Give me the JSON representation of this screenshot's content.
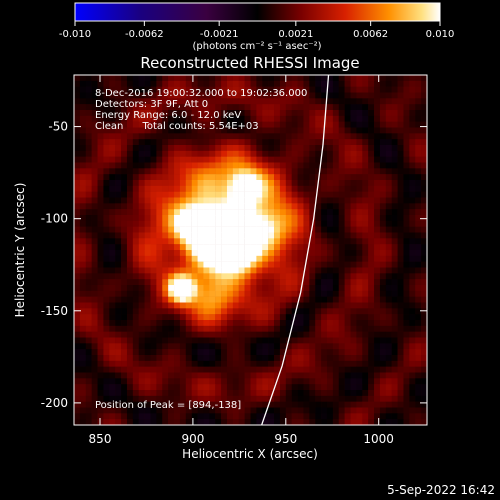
{
  "chart_data": {
    "type": "heatmap",
    "title": "Reconstructed RHESSI Image",
    "xlabel": "Heliocentric X (arcsec)",
    "ylabel": "Heliocentric Y (arcsec)",
    "xlim": [
      836,
      1026
    ],
    "ylim": [
      -212,
      -22
    ],
    "xticks": [
      850,
      900,
      950,
      1000
    ],
    "yticks": [
      -50,
      -100,
      -150,
      -200
    ],
    "colorbar": {
      "colormap": "hot-blue",
      "range": [
        -0.01,
        0.01
      ],
      "tick_values": [
        -0.01,
        -0.0062,
        -0.0021,
        0.0021,
        0.0062,
        0.01
      ],
      "tick_labels": [
        "-0.010",
        "-0.0062",
        "-0.0021",
        "0.0021",
        "0.0062",
        "0.010"
      ],
      "units_label": "(photons cm⁻² s⁻¹ asec⁻²)"
    },
    "annotations": [
      "8-Dec-2016 19:00:32.000 to 19:02:36.000",
      "Detectors: 3F 9F, Att 0",
      "Energy Range: 6.0 - 12.0 keV",
      "Clean      Total counts: 5.54E+03"
    ],
    "peak_label": "Position of Peak = [894,-138]",
    "peak": [
      894,
      -138
    ],
    "limb_points": [
      [
        973,
        -22
      ],
      [
        970,
        -60
      ],
      [
        965,
        -100
      ],
      [
        958,
        -140
      ],
      [
        948,
        -180
      ],
      [
        937,
        -212
      ]
    ],
    "sources": [
      {
        "x": 894,
        "y": -138,
        "value": 0.01,
        "sigma": 5
      },
      {
        "x": 912,
        "y": -110,
        "value": 0.0085,
        "sigma": 16
      },
      {
        "x": 928,
        "y": -83,
        "value": 0.0075,
        "sigma": 6
      },
      {
        "x": 900,
        "y": -103,
        "value": 0.007,
        "sigma": 7
      },
      {
        "x": 925,
        "y": -120,
        "value": 0.0068,
        "sigma": 8
      },
      {
        "x": 938,
        "y": -105,
        "value": 0.006,
        "sigma": 8
      },
      {
        "x": 910,
        "y": -140,
        "value": 0.005,
        "sigma": 9
      },
      {
        "x": 920,
        "y": -95,
        "value": 0.005,
        "sigma": 22
      }
    ],
    "background_level": 0.004
  },
  "timestamp": "5-Sep-2022 16:42"
}
